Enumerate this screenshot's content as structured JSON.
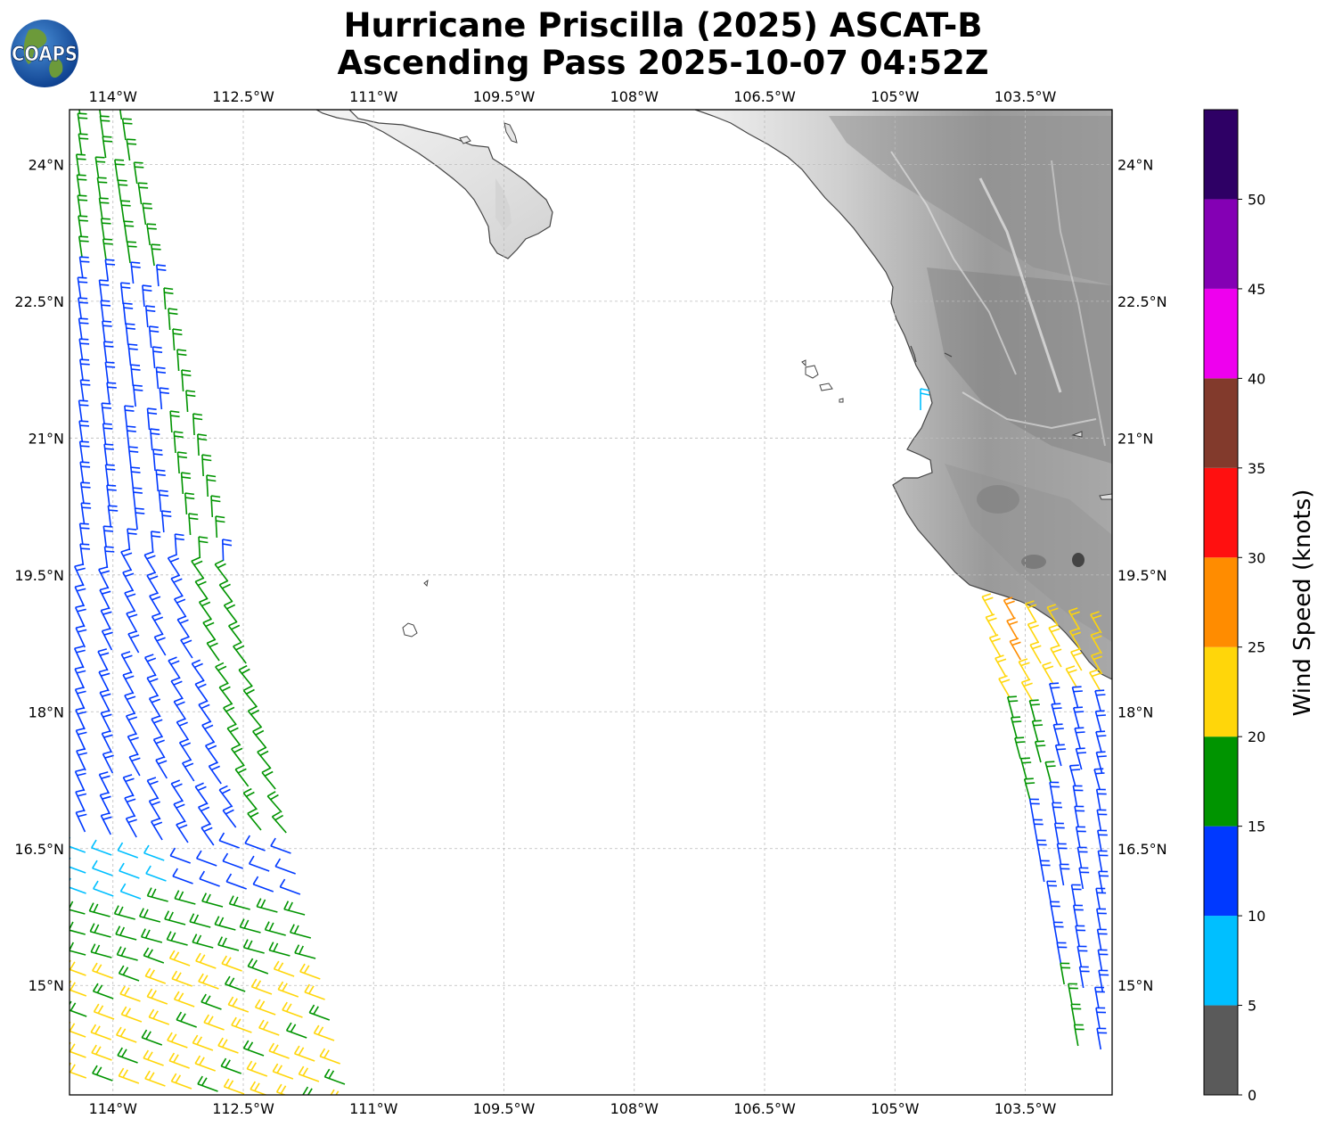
{
  "title": {
    "line1": "Hurricane Priscilla (2025) ASCAT-B",
    "line2": "Ascending Pass 2025-10-07 04:52Z"
  },
  "logo": {
    "text": "COAPS",
    "icon": "globe-icon"
  },
  "map": {
    "lon_range": [
      -114.5,
      -102.5
    ],
    "lat_range": [
      13.8,
      24.6
    ],
    "lon_ticks": [
      "114°W",
      "112.5°W",
      "111°W",
      "109.5°W",
      "108°W",
      "106.5°W",
      "105°W",
      "103.5°W"
    ],
    "lon_tick_values": [
      -114,
      -112.5,
      -111,
      -109.5,
      -108,
      -106.5,
      -105,
      -103.5
    ],
    "lat_ticks": [
      "24°N",
      "22.5°N",
      "21°N",
      "19.5°N",
      "18°N",
      "16.5°N",
      "15°N"
    ],
    "lat_tick_values": [
      24,
      22.5,
      21,
      19.5,
      18,
      16.5,
      15
    ],
    "grid": true,
    "coastline_color": "#444444",
    "land_shading": "grayscale terrain"
  },
  "colorbar": {
    "label": "Wind Speed (knots)",
    "ticks": [
      "0",
      "5",
      "10",
      "15",
      "20",
      "25",
      "30",
      "35",
      "40",
      "45",
      "50"
    ],
    "bins": [
      {
        "min": 0,
        "max": 5,
        "color": "#5a5a5a"
      },
      {
        "min": 5,
        "max": 10,
        "color": "#00bfff"
      },
      {
        "min": 10,
        "max": 15,
        "color": "#0039ff"
      },
      {
        "min": 15,
        "max": 20,
        "color": "#009400"
      },
      {
        "min": 20,
        "max": 25,
        "color": "#ffd60a"
      },
      {
        "min": 25,
        "max": 30,
        "color": "#ff8c00"
      },
      {
        "min": 30,
        "max": 35,
        "color": "#ff1010"
      },
      {
        "min": 35,
        "max": 40,
        "color": "#823a2c"
      },
      {
        "min": 40,
        "max": 45,
        "color": "#ee00ee"
      },
      {
        "min": 45,
        "max": 50,
        "color": "#8400b4"
      },
      {
        "min": 50,
        "max": 55,
        "color": "#2e0065"
      }
    ]
  }
}
